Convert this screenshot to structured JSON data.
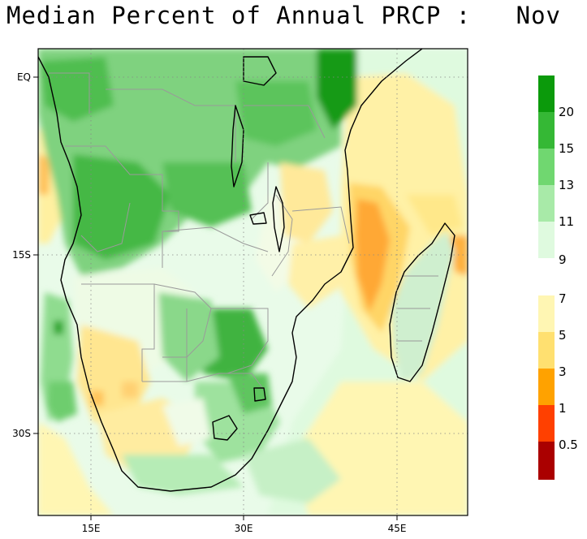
{
  "title": "Median Percent of Annual PRCP :   Nov",
  "map": {
    "lon_labels": [
      "15E",
      "30E",
      "45E"
    ],
    "lat_labels": [
      "EQ",
      "15S",
      "30S"
    ]
  },
  "colorbar": {
    "upper": {
      "colors": [
        "#0b9a0b",
        "#35b835",
        "#70d770",
        "#a8eaa8",
        "#dffadf"
      ],
      "labels": [
        "20",
        "15",
        "13",
        "11",
        "9"
      ]
    },
    "lower": {
      "colors": [
        "#fff6b3",
        "#ffe070",
        "#ffa200",
        "#ff4000",
        "#aa0000"
      ],
      "labels": [
        "7",
        "5",
        "3",
        "1",
        "0.5"
      ]
    }
  },
  "palette": {
    "deep_green": "#1f9e1f",
    "green": "#55c455",
    "light_green": "#a8eaa8",
    "pale_green": "#dffadf",
    "pale_yellow": "#fff6b3",
    "yellow": "#ffe070",
    "orange": "#ffa200",
    "country_border": "#9a9a9a",
    "coast": "#000000"
  }
}
